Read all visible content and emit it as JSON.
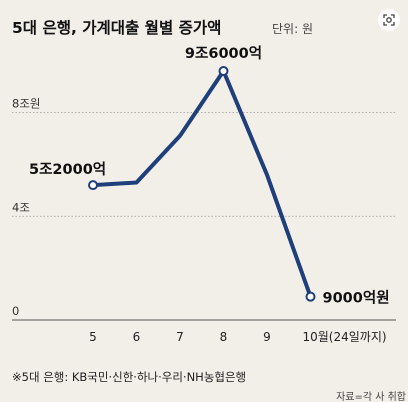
{
  "chart_data": {
    "type": "line",
    "title": "5대 은행, 가계대출 월별 증가액",
    "unit_label": "단위: 원",
    "categories": [
      "5",
      "6",
      "7",
      "8",
      "9",
      "10월(24일까지)"
    ],
    "x": [
      5,
      6,
      7,
      8,
      9,
      10
    ],
    "y_tick_labels": [
      {
        "value": 0,
        "label": "0"
      },
      {
        "value": 4,
        "label": "4조"
      },
      {
        "value": 8,
        "label": "8조원"
      }
    ],
    "series": [
      {
        "values": [
          5.2,
          5.3,
          7.1,
          9.6,
          5.6,
          0.9
        ]
      }
    ],
    "point_labels": [
      {
        "index": 0,
        "label": "5조2000억"
      },
      {
        "index": 3,
        "label": "9조6000억"
      },
      {
        "index": 5,
        "label": "9000억원"
      }
    ],
    "ylim": [
      0,
      10.5
    ],
    "grid": true,
    "line_color": "#1f3f7a",
    "grid_color": "#9a9a9a",
    "background": "#f2efe9",
    "footnote": "※5대 은행: KB국민·신한·하나·우리·NH농협은행",
    "source": "자료=각 사 취합"
  },
  "toolbar": {
    "icon_name": "scan-icon"
  }
}
